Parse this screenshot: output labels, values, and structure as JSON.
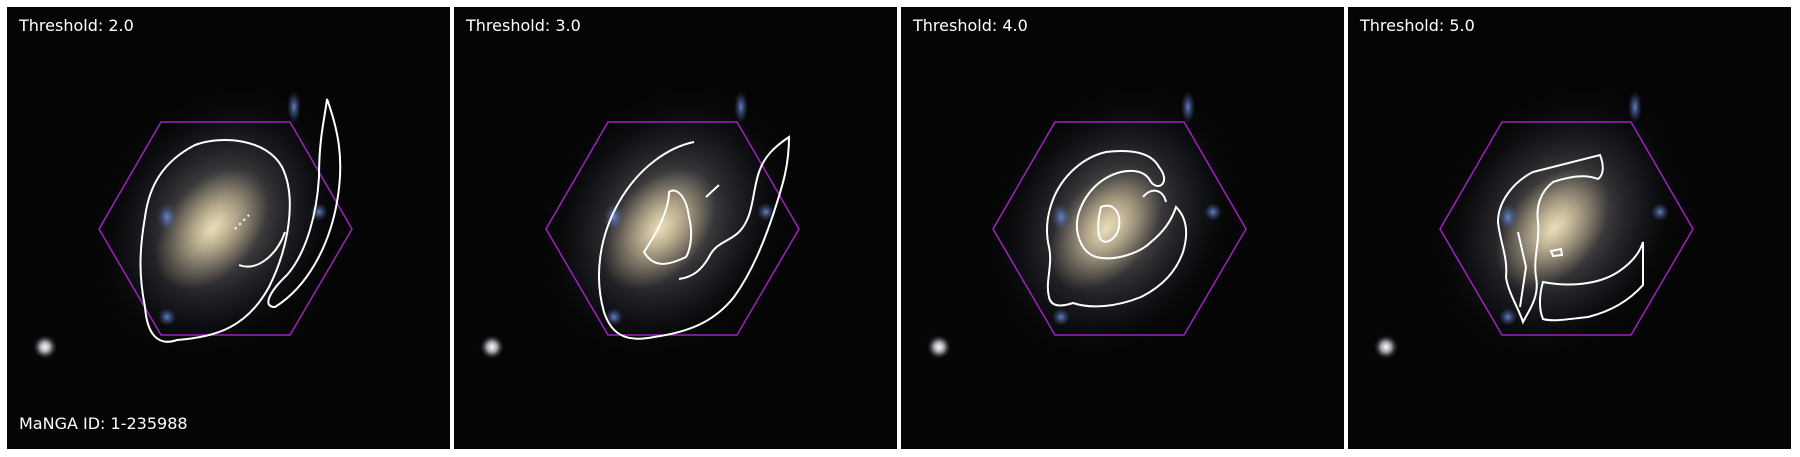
{
  "panels": [
    {
      "threshold_label": "Threshold: 2.0",
      "manga_id_label": "MaNGA ID: 1-235988"
    },
    {
      "threshold_label": "Threshold: 3.0",
      "manga_id_label": ""
    },
    {
      "threshold_label": "Threshold: 4.0",
      "manga_id_label": ""
    },
    {
      "threshold_label": "Threshold: 5.0",
      "manga_id_label": ""
    }
  ],
  "colors": {
    "hexagon": "#a020c0",
    "contour": "#ffffff",
    "background": "#050505"
  }
}
